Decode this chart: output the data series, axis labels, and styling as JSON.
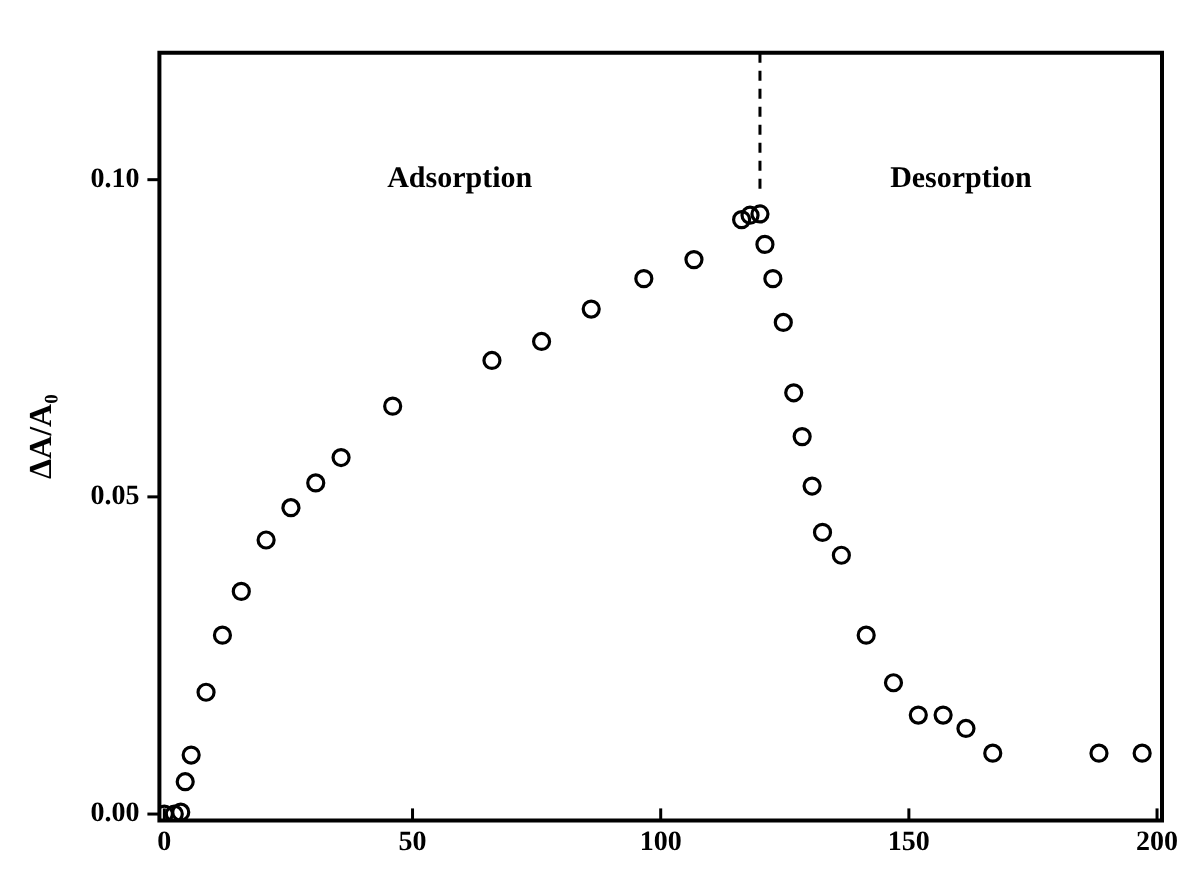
{
  "chart_data": {
    "type": "scatter",
    "ylabel": "ΔA/A₀",
    "marker": "circle",
    "grid": false,
    "legend": false,
    "xlim": [
      -1,
      201
    ],
    "xticks": [
      0,
      50,
      100,
      150,
      200
    ],
    "ylim": [
      -0.001,
      0.12
    ],
    "yticks": [
      {
        "value": 0,
        "label": "0.00"
      },
      {
        "value": 0.05,
        "label": "0.05"
      },
      {
        "value": 0.1,
        "label": "0.10"
      }
    ],
    "series": [
      {
        "color": "#000000",
        "x": [
          0,
          2,
          3.3,
          4.2,
          5.4,
          8.4,
          11.7,
          15.5,
          20.5,
          25.5,
          30.5,
          35.6,
          46,
          66,
          76,
          86,
          96.6,
          106.7,
          116.3,
          118,
          120,
          121,
          122.6,
          124.7,
          126.8,
          128.5,
          130.5,
          132.6,
          136.4,
          141.4,
          146.9,
          151.9,
          156.9,
          161.5,
          166.9,
          188.3,
          197
        ],
        "values": [
          0,
          0,
          0.0003,
          0.0051,
          0.0093,
          0.0192,
          0.0282,
          0.0351,
          0.0432,
          0.0483,
          0.0522,
          0.0562,
          0.0643,
          0.0715,
          0.0745,
          0.0796,
          0.0844,
          0.0874,
          0.0937,
          0.0944,
          0.0946,
          0.0898,
          0.0844,
          0.0775,
          0.0664,
          0.0595,
          0.0517,
          0.0444,
          0.0408,
          0.0282,
          0.0207,
          0.0156,
          0.0156,
          0.0135,
          0.0096,
          0.0096,
          0.0096
        ]
      }
    ],
    "ref_lines": [
      {
        "axis": "x",
        "value": 120,
        "line_style": "dashed",
        "color": "#000000"
      }
    ],
    "annotations": [
      "Adsorption",
      "Desorption"
    ]
  }
}
